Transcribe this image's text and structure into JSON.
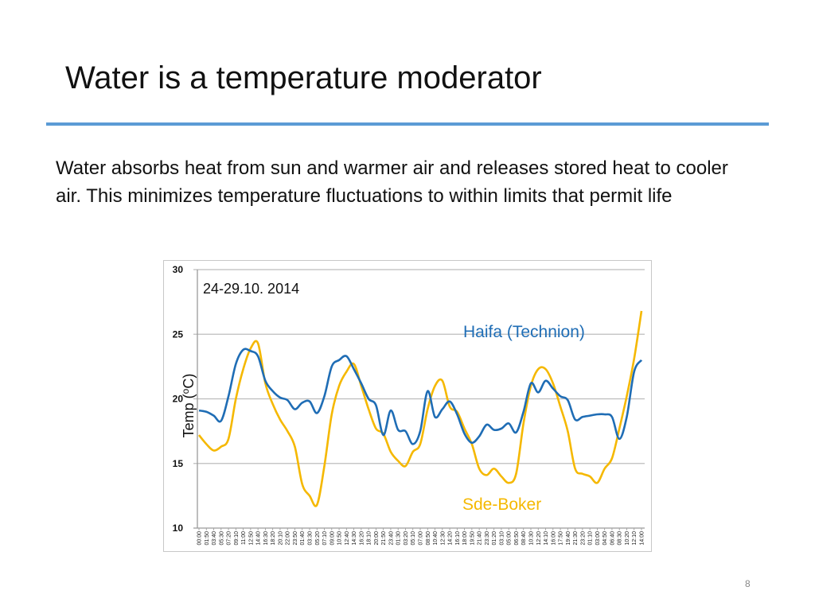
{
  "slide": {
    "title": "Water is a temperature moderator",
    "body": "Water absorbs heat from sun and warmer air and releases stored heat to cooler air. This minimizes temperature fluctuations to within limits that permit life",
    "page_number": "8",
    "accent_color": "#5b9bd5"
  },
  "chart_data": {
    "type": "line",
    "annotation": "24-29.10. 2014",
    "ylabel": "Temp (",
    "ylabel_sup": "o",
    "ylabel_end": "C)",
    "ylim": [
      10,
      30
    ],
    "yticks": [
      10,
      15,
      20,
      25,
      30
    ],
    "grid": true,
    "categories": [
      "00:00",
      "01:50",
      "03:40",
      "05:30",
      "07:20",
      "09:10",
      "11:00",
      "12:50",
      "14:40",
      "16:30",
      "18:20",
      "20:10",
      "22:00",
      "23:50",
      "01:40",
      "03:30",
      "05:20",
      "07:10",
      "09:00",
      "10:50",
      "12:40",
      "14:30",
      "16:20",
      "18:10",
      "20:00",
      "21:50",
      "23:40",
      "01:30",
      "03:20",
      "05:10",
      "07:00",
      "08:50",
      "10:40",
      "12:30",
      "14:20",
      "16:10",
      "18:00",
      "19:50",
      "21:40",
      "23:30",
      "01:20",
      "03:10",
      "05:00",
      "06:50",
      "08:40",
      "10:30",
      "12:20",
      "14:10",
      "16:00",
      "17:50",
      "19:40",
      "21:30",
      "23:20",
      "01:10",
      "03:00",
      "04:50",
      "06:40",
      "08:30",
      "10:20",
      "12:10",
      "14:00"
    ],
    "series": [
      {
        "name": "Haifa (Technion)",
        "color": "#1f6db5",
        "values": [
          19.1,
          19.0,
          18.7,
          18.3,
          20.2,
          22.7,
          23.8,
          23.7,
          23.3,
          21.4,
          20.6,
          20.1,
          19.9,
          19.2,
          19.7,
          19.8,
          18.9,
          20.2,
          22.5,
          23.0,
          23.3,
          22.3,
          21.2,
          20.0,
          19.5,
          17.2,
          19.1,
          17.6,
          17.5,
          16.5,
          17.5,
          20.6,
          18.6,
          19.2,
          19.8,
          18.8,
          17.3,
          16.6,
          17.1,
          18.0,
          17.6,
          17.7,
          18.1,
          17.4,
          19.0,
          21.2,
          20.5,
          21.4,
          20.8,
          20.2,
          19.9,
          18.4,
          18.6,
          18.7,
          18.8,
          18.8,
          18.6,
          16.9,
          18.6,
          22.1,
          23.0
        ]
      },
      {
        "name": "Sde-Boker",
        "color": "#f5b800",
        "values": [
          17.2,
          16.5,
          16.0,
          16.3,
          16.9,
          20.0,
          22.3,
          23.9,
          24.3,
          21.2,
          19.6,
          18.4,
          17.5,
          16.3,
          13.4,
          12.5,
          11.8,
          14.8,
          18.8,
          21.0,
          22.1,
          22.7,
          21.0,
          19.2,
          17.7,
          17.3,
          15.9,
          15.2,
          14.8,
          15.9,
          16.5,
          19.2,
          21.0,
          21.4,
          19.4,
          19.0,
          17.7,
          16.5,
          14.6,
          14.1,
          14.6,
          14.0,
          13.5,
          14.2,
          18.1,
          21.0,
          22.3,
          22.3,
          21.2,
          19.4,
          17.5,
          14.6,
          14.2,
          14.0,
          13.5,
          14.6,
          15.4,
          17.7,
          20.2,
          23.1,
          26.8
        ]
      }
    ]
  }
}
